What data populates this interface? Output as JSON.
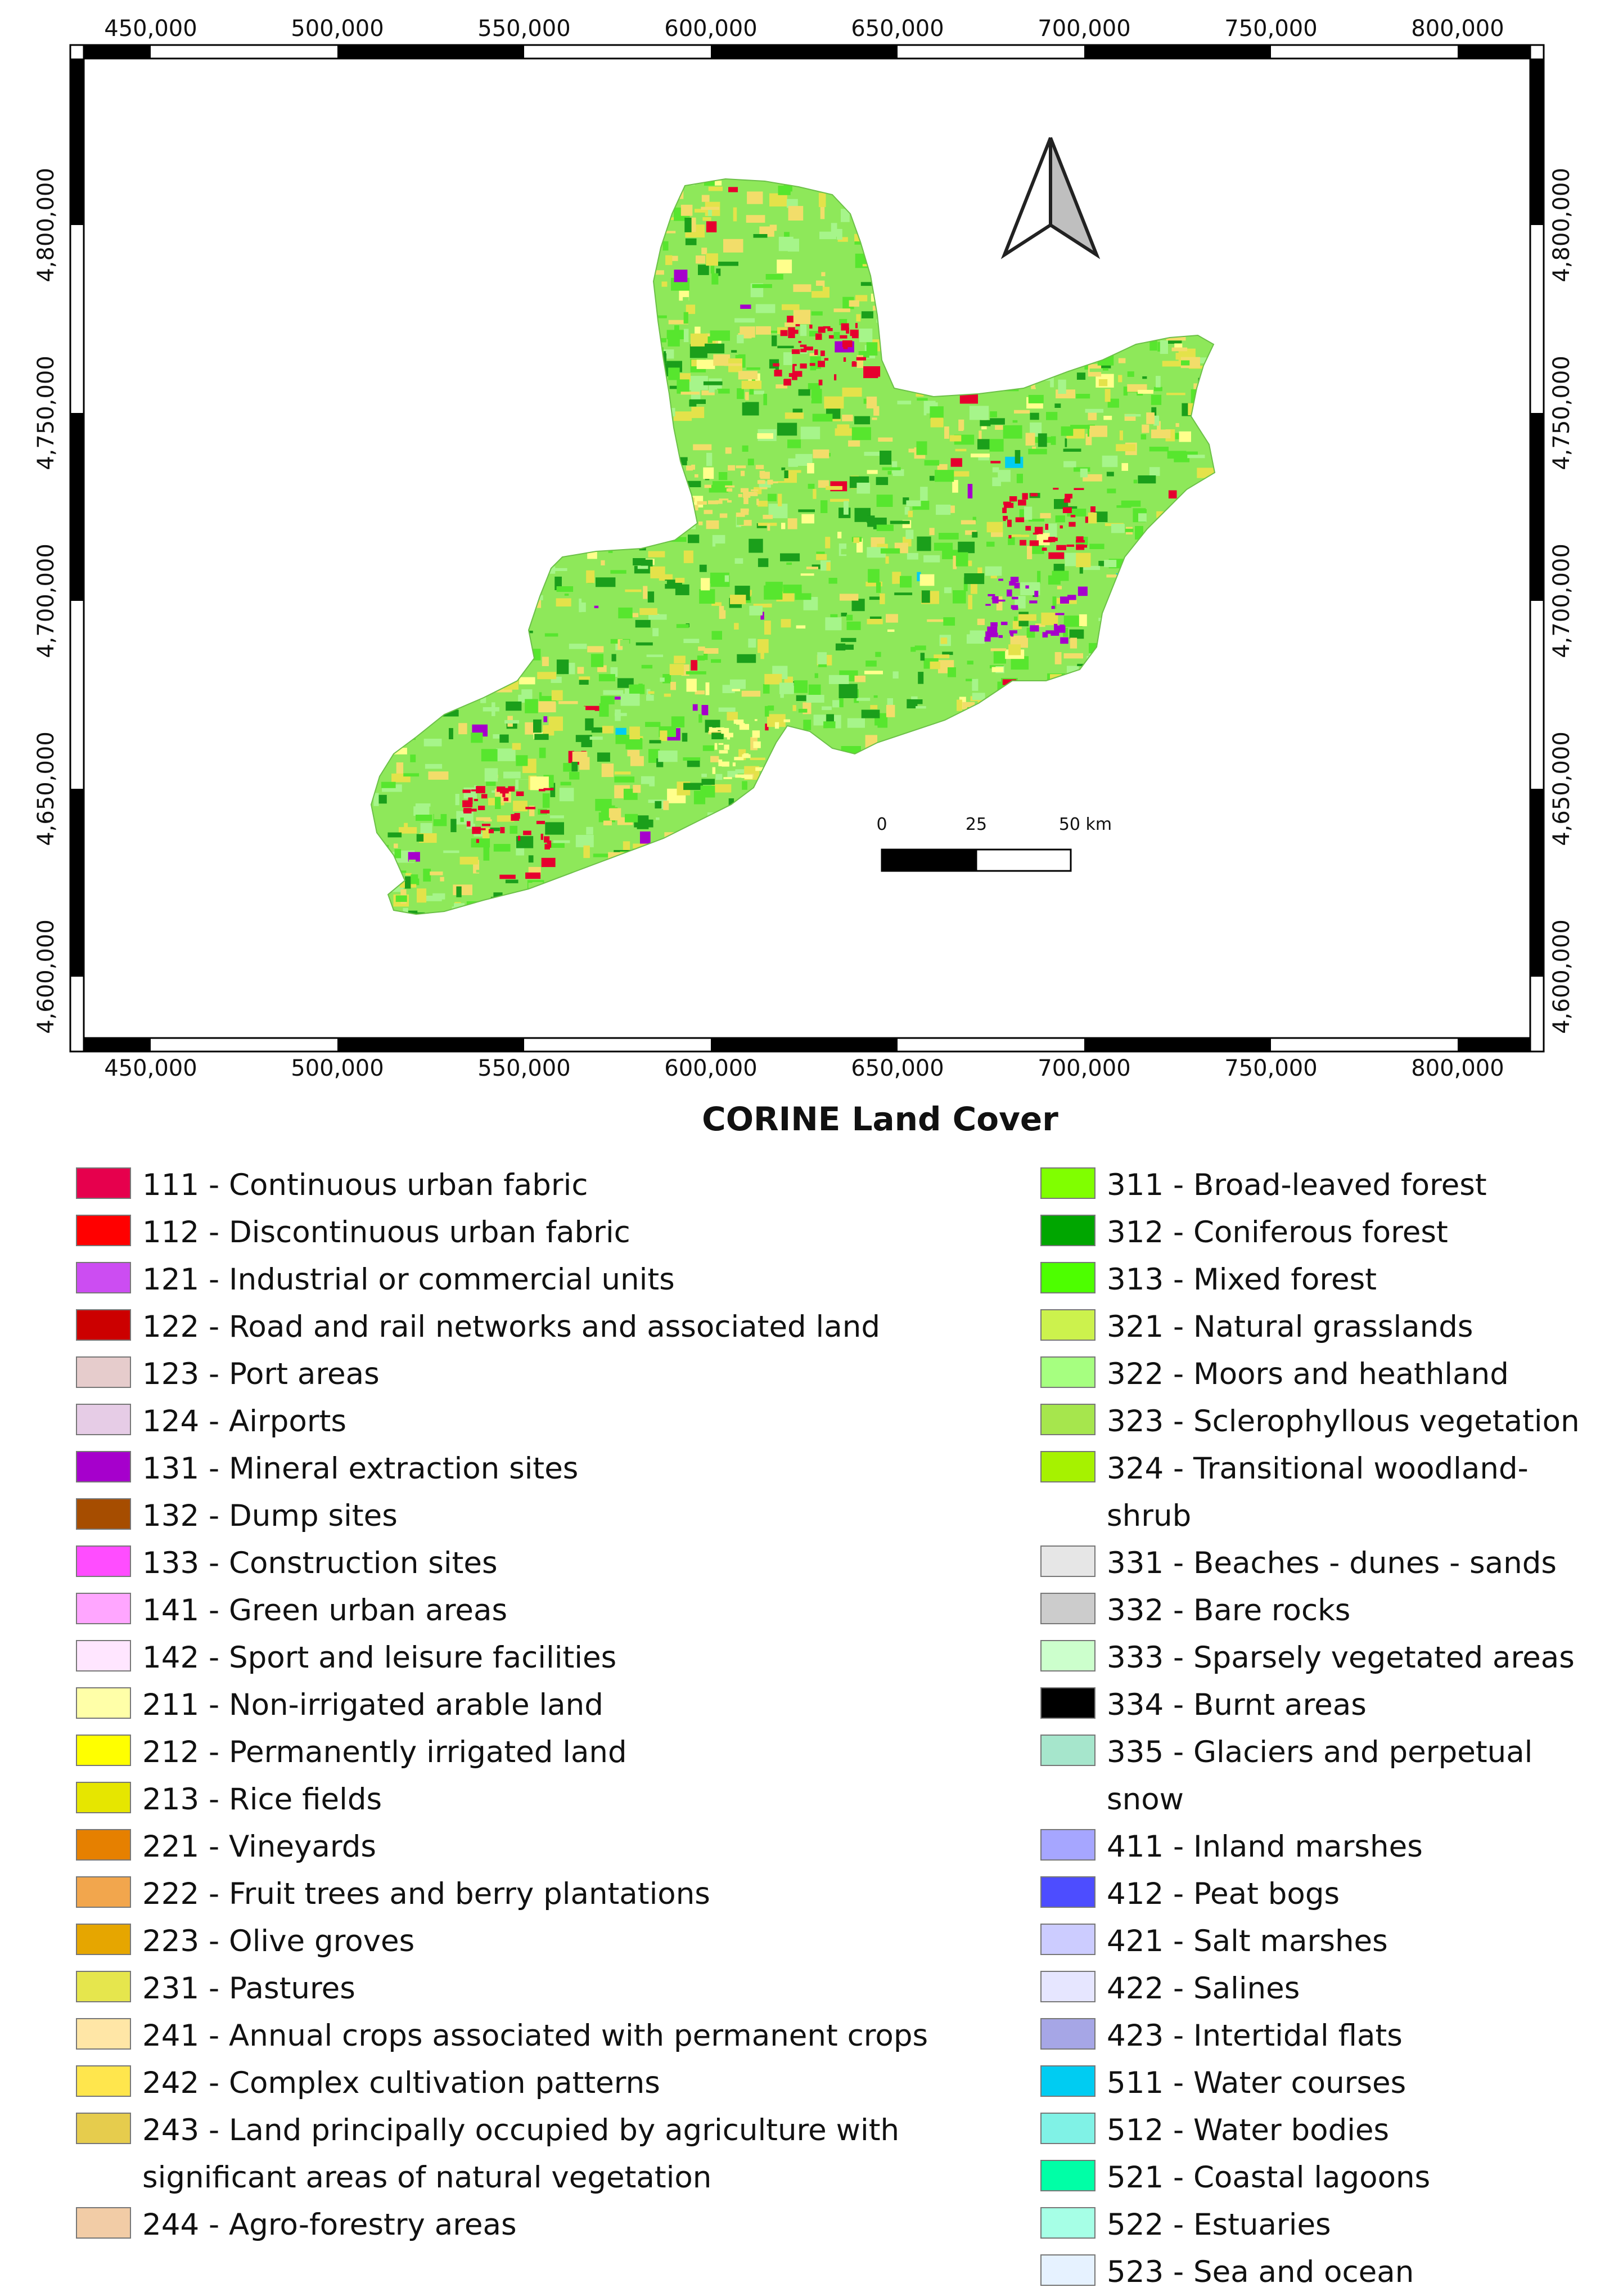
{
  "map": {
    "x_ticks": [
      "450,000",
      "500,000",
      "550,000",
      "600,000",
      "650,000",
      "700,000",
      "750,000",
      "800,000"
    ],
    "y_ticks": [
      "4,800,000",
      "4,750,000",
      "4,700,000",
      "4,650,000",
      "4,600,000"
    ],
    "north_arrow_icon": "north-arrow-icon",
    "scale_bar": {
      "labels": [
        "0",
        "25",
        "50 km"
      ]
    },
    "land_colors": {
      "base": "#8ee85a",
      "mixed": "#57e62e",
      "conifer": "#1b9f1b",
      "pasture": "#e4e24a",
      "complex": "#f2dd6a",
      "arable": "#ffff8c",
      "moors": "#a6f58a",
      "urban": "#e6002e",
      "industrial": "#a600cc",
      "water": "#00ccf2"
    }
  },
  "legend": {
    "title": "CORINE Land Cover",
    "left": [
      {
        "code": "111",
        "label": "111 - Continuous urban fabric",
        "color": "#e6004d"
      },
      {
        "code": "112",
        "label": "112 - Discontinuous urban fabric",
        "color": "#ff0000"
      },
      {
        "code": "121",
        "label": "121 - Industrial or commercial units",
        "color": "#cc4df2"
      },
      {
        "code": "122",
        "label": "122 - Road and rail networks and associated land",
        "color": "#cc0000"
      },
      {
        "code": "123",
        "label": "123 - Port areas",
        "color": "#e6cccc"
      },
      {
        "code": "124",
        "label": "124 - Airports",
        "color": "#e6cce6"
      },
      {
        "code": "131",
        "label": "131 - Mineral extraction sites",
        "color": "#a600cc"
      },
      {
        "code": "132",
        "label": "132 - Dump sites",
        "color": "#a64d00"
      },
      {
        "code": "133",
        "label": "133 - Construction sites",
        "color": "#ff4dff"
      },
      {
        "code": "141",
        "label": "141 - Green urban areas",
        "color": "#ffa6ff"
      },
      {
        "code": "142",
        "label": "142 - Sport and leisure facilities",
        "color": "#ffe6ff"
      },
      {
        "code": "211",
        "label": "211 - Non-irrigated arable land",
        "color": "#ffffa8"
      },
      {
        "code": "212",
        "label": "212 - Permanently irrigated land",
        "color": "#ffff00"
      },
      {
        "code": "213",
        "label": "213 - Rice fields",
        "color": "#e6e600"
      },
      {
        "code": "221",
        "label": "221 - Vineyards",
        "color": "#e68000"
      },
      {
        "code": "222",
        "label": "222 - Fruit trees and berry plantations",
        "color": "#f2a64d"
      },
      {
        "code": "223",
        "label": "223 - Olive groves",
        "color": "#e6a600"
      },
      {
        "code": "231",
        "label": "231 - Pastures",
        "color": "#e6e64d"
      },
      {
        "code": "241",
        "label": "241 - Annual crops associated with permanent crops",
        "color": "#ffe6a6"
      },
      {
        "code": "242",
        "label": "242 - Complex cultivation patterns",
        "color": "#ffe64d"
      },
      {
        "code": "243",
        "label": "243 - Land principally occupied by agriculture with\nsignificant areas of natural vegetation",
        "color": "#e6cc4d"
      },
      {
        "code": "244",
        "label": "244 - Agro-forestry areas",
        "color": "#f2cca6"
      }
    ],
    "right": [
      {
        "code": "311",
        "label": "311 - Broad-leaved forest",
        "color": "#80ff00"
      },
      {
        "code": "312",
        "label": "312 - Coniferous forest",
        "color": "#00a600"
      },
      {
        "code": "313",
        "label": "313 - Mixed forest",
        "color": "#4dff00"
      },
      {
        "code": "321",
        "label": "321 - Natural grasslands",
        "color": "#ccf24d"
      },
      {
        "code": "322",
        "label": "322 - Moors and heathland",
        "color": "#a6ff80"
      },
      {
        "code": "323",
        "label": "323 - Sclerophyllous vegetation",
        "color": "#a6e64d"
      },
      {
        "code": "324",
        "label": "324 - Transitional woodland-shrub",
        "color": "#a6f200"
      },
      {
        "code": "331",
        "label": "331 - Beaches - dunes - sands",
        "color": "#e6e6e6"
      },
      {
        "code": "332",
        "label": "332 - Bare rocks",
        "color": "#cccccc"
      },
      {
        "code": "333",
        "label": "333 - Sparsely vegetated areas",
        "color": "#ccffcc"
      },
      {
        "code": "334",
        "label": "334 - Burnt areas",
        "color": "#000000"
      },
      {
        "code": "335",
        "label": "335 - Glaciers and perpetual snow",
        "color": "#a6e6cc"
      },
      {
        "code": "411",
        "label": "411 - Inland marshes",
        "color": "#a6a6ff"
      },
      {
        "code": "412",
        "label": "412 - Peat bogs",
        "color": "#4d4dff"
      },
      {
        "code": "421",
        "label": "421 - Salt marshes",
        "color": "#ccccff"
      },
      {
        "code": "422",
        "label": "422 - Salines",
        "color": "#e6e6ff"
      },
      {
        "code": "423",
        "label": "423 - Intertidal flats",
        "color": "#a6a6e6"
      },
      {
        "code": "511",
        "label": "511 - Water courses",
        "color": "#00ccf2"
      },
      {
        "code": "512",
        "label": "512 - Water bodies",
        "color": "#80f2e6"
      },
      {
        "code": "521",
        "label": "521 - Coastal lagoons",
        "color": "#00ffa6"
      },
      {
        "code": "522",
        "label": "522 - Estuaries",
        "color": "#a6ffe6"
      },
      {
        "code": "523",
        "label": "523 - Sea and ocean",
        "color": "#e6f2ff"
      }
    ]
  }
}
